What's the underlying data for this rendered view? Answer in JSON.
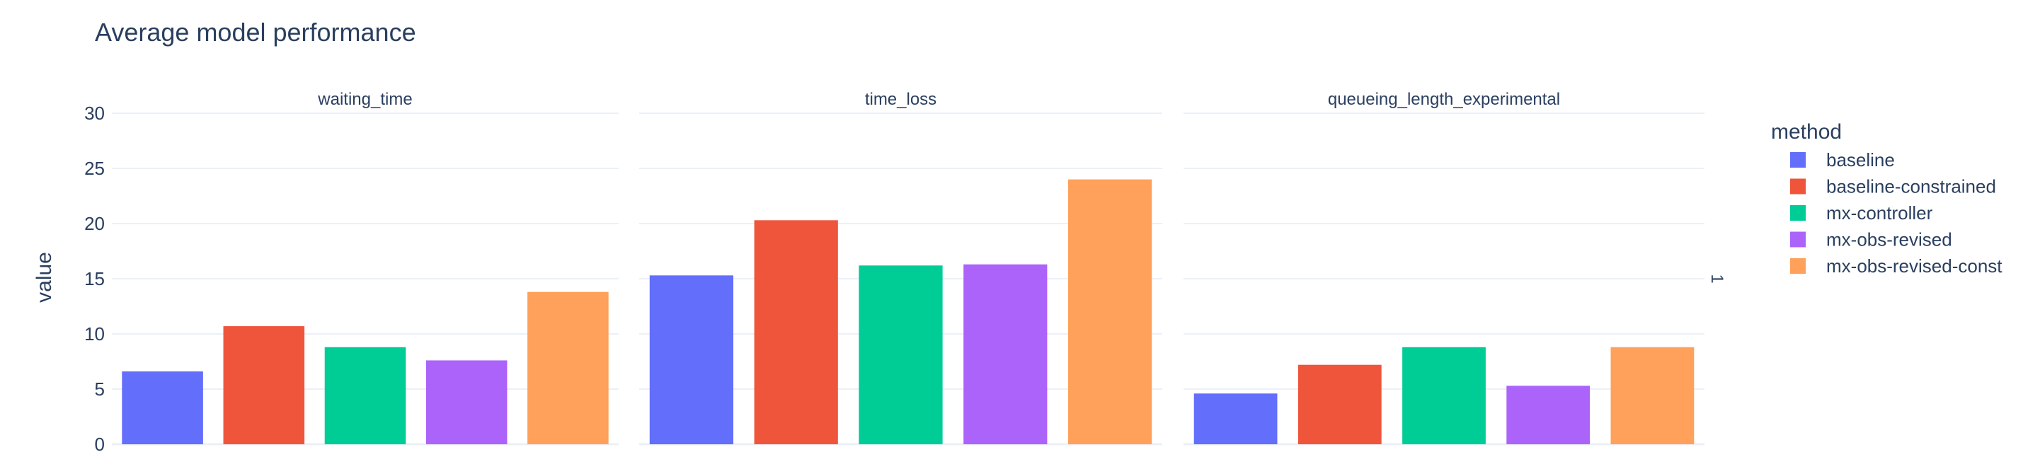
{
  "chart_data": {
    "type": "bar",
    "title": "Average model performance",
    "ylabel": "value",
    "ylim": [
      0,
      30
    ],
    "yticks": [
      0,
      5,
      10,
      15,
      20,
      25,
      30
    ],
    "grid": true,
    "legend": {
      "title": "method",
      "placement": "right"
    },
    "facet_side_label": "1",
    "categories": [
      "baseline",
      "baseline-constrained",
      "mx-controller",
      "mx-obs-revised",
      "mx-obs-revised-const"
    ],
    "colors": {
      "baseline": "#636efa",
      "baseline-constrained": "#ef553b",
      "mx-controller": "#00cc96",
      "mx-obs-revised": "#ab63fa",
      "mx-obs-revised-const": "#ffa15a"
    },
    "facets": [
      {
        "name": "waiting_time",
        "values": [
          6.6,
          10.7,
          8.8,
          7.6,
          13.8
        ]
      },
      {
        "name": "time_loss",
        "values": [
          15.3,
          20.3,
          16.2,
          16.3,
          24.0
        ]
      },
      {
        "name": "queueing_length_experimental",
        "values": [
          4.6,
          7.2,
          8.8,
          5.3,
          8.8
        ]
      }
    ]
  }
}
